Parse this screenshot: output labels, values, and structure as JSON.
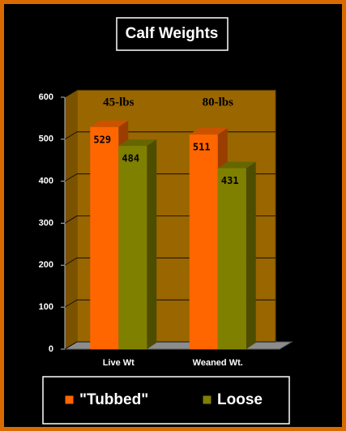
{
  "chart_data": {
    "type": "bar",
    "title": "Calf Weights",
    "annotations": [
      "45-lbs",
      "80-lbs"
    ],
    "categories": [
      "Live Wt",
      "Weaned Wt."
    ],
    "series": [
      {
        "name": "\"Tubbed\"",
        "color": "#ff6600",
        "values": [
          529,
          511
        ]
      },
      {
        "name": "Loose",
        "color": "#808000",
        "values": [
          484,
          431
        ]
      }
    ],
    "ylim": [
      0,
      600
    ],
    "yticks": [
      0,
      100,
      200,
      300,
      400,
      500,
      600
    ],
    "grid": true,
    "legend": "bottom"
  }
}
